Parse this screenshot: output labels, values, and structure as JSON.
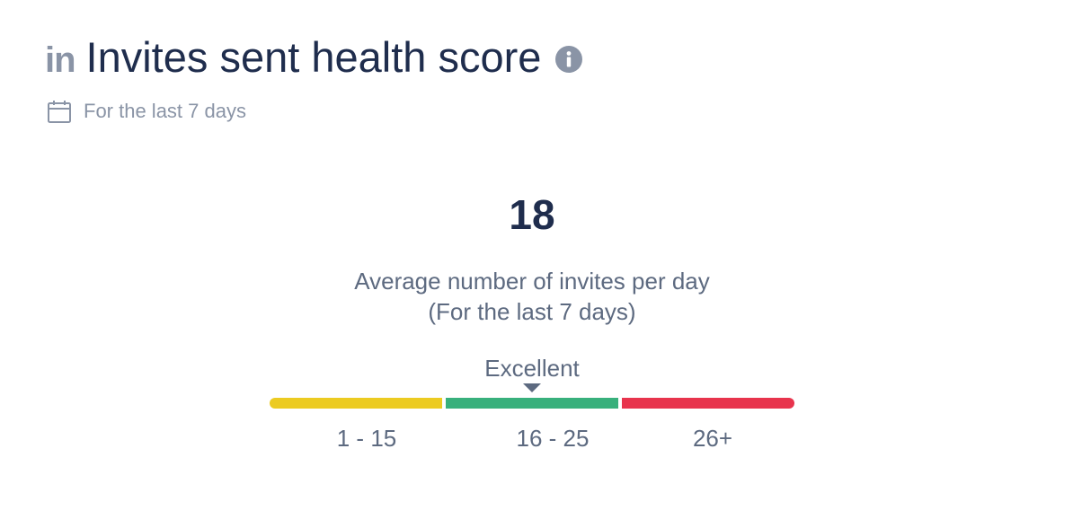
{
  "header": {
    "logo_text": "in",
    "title": "Invites sent health score",
    "info_icon": "info-icon"
  },
  "subheader": {
    "calendar_icon": "calendar-icon",
    "period": "For the last 7 days"
  },
  "score": {
    "value": "18",
    "caption_line1": "Average number of invites per day",
    "caption_line2": "(For the last 7 days)"
  },
  "gauge": {
    "status": "Excellent",
    "segments": [
      {
        "label": "1 - 15",
        "color": "#eccb21"
      },
      {
        "label": "16 - 25",
        "color": "#38b07c"
      },
      {
        "label": "26+",
        "color": "#e8344d"
      }
    ]
  },
  "colors": {
    "title": "#1f2d4d",
    "muted": "#8a94a6",
    "body_text": "#5d6a80"
  }
}
